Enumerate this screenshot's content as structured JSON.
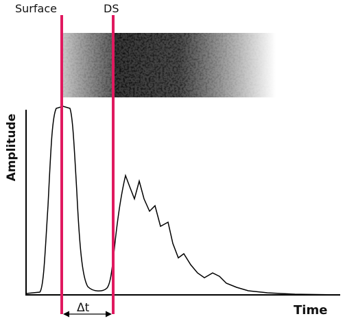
{
  "labels": {
    "surface": "Surface",
    "ds": "DS",
    "y_axis": "Amplitude",
    "x_axis": "Time",
    "interval": "Δt"
  }
}
